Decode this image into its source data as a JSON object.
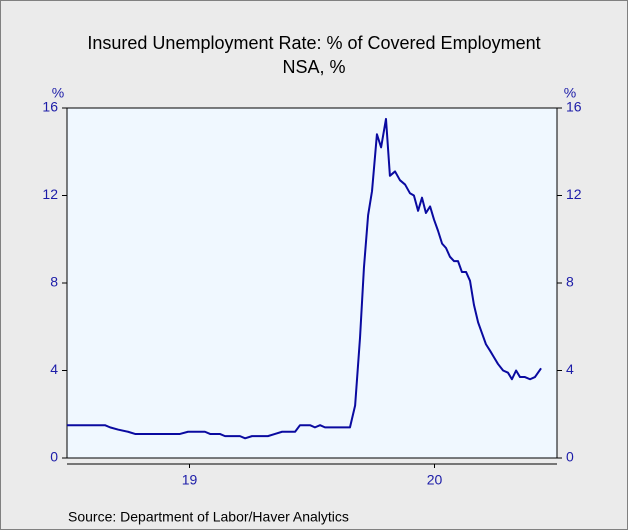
{
  "chart_data": {
    "type": "line",
    "title": "Insured Unemployment Rate: % of Covered Employment",
    "subtitle": "NSA, %",
    "source": "Source:  Department of Labor/Haver Analytics",
    "y_unit": "%",
    "y2_unit": "%",
    "x": [
      2019.0,
      2019.155,
      2019.176,
      2019.208,
      2019.249,
      2019.278,
      2019.461,
      2019.494,
      2019.563,
      2019.584,
      2019.624,
      2019.645,
      2019.706,
      2019.727,
      2019.755,
      2019.82,
      2019.849,
      2019.878,
      2019.931,
      2019.951,
      2019.992,
      2020.012,
      2020.033,
      2020.053,
      2020.155,
      2020.176,
      2020.196,
      2020.212,
      2020.229,
      2020.245,
      2020.265,
      2020.282,
      2020.302,
      2020.318,
      2020.339,
      2020.359,
      2020.38,
      2020.4,
      2020.416,
      2020.433,
      2020.449,
      2020.465,
      2020.482,
      2020.498,
      2020.514,
      2020.531,
      2020.547,
      2020.563,
      2020.58,
      2020.596,
      2020.612,
      2020.629,
      2020.645,
      2020.661,
      2020.678,
      2020.694,
      2020.71,
      2020.727,
      2020.743,
      2020.759,
      2020.78,
      2020.8,
      2020.816,
      2020.833,
      2020.849,
      2020.869,
      2020.89,
      2020.91,
      2020.935
    ],
    "series": [
      {
        "name": "Insured Unemployment Rate",
        "color": "#0a0aa0",
        "values": [
          1.5,
          1.5,
          1.4,
          1.3,
          1.2,
          1.1,
          1.1,
          1.2,
          1.2,
          1.1,
          1.1,
          1.0,
          1.0,
          0.9,
          1.0,
          1.0,
          1.1,
          1.2,
          1.2,
          1.5,
          1.5,
          1.4,
          1.5,
          1.4,
          1.4,
          2.4,
          5.5,
          8.7,
          11.1,
          12.2,
          14.8,
          14.2,
          15.5,
          12.9,
          13.1,
          12.7,
          12.5,
          12.1,
          12.0,
          11.3,
          11.9,
          11.2,
          11.5,
          10.9,
          10.4,
          9.8,
          9.6,
          9.2,
          9.0,
          9.0,
          8.5,
          8.5,
          8.1,
          7.0,
          6.2,
          5.7,
          5.2,
          4.9,
          4.6,
          4.3,
          4.0,
          3.9,
          3.6,
          4.0,
          3.7,
          3.7,
          3.6,
          3.7,
          4.1
        ]
      }
    ],
    "xlim": [
      2019.0,
      2021.0
    ],
    "xticks": [
      {
        "value": 2019.5,
        "label": "19"
      },
      {
        "value": 2020.5,
        "label": "20"
      }
    ],
    "ylim": [
      0,
      16
    ],
    "yticks": [
      0,
      4,
      8,
      12,
      16
    ],
    "y2lim": [
      0,
      16
    ],
    "y2ticks": [
      0,
      4,
      8,
      12,
      16
    ],
    "plot_background": "#f0f8ff",
    "grid": false
  }
}
